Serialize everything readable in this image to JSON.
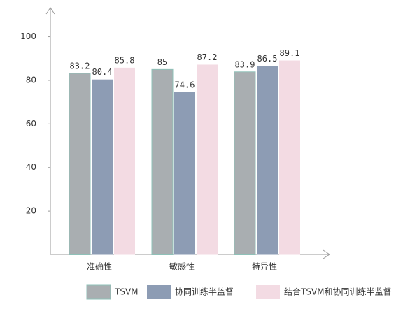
{
  "chart_data": {
    "type": "bar",
    "categories": [
      "准确性",
      "敏感性",
      "特异性"
    ],
    "series": [
      {
        "name": "TSVM",
        "color": "#a9aeb1",
        "values": [
          83.2,
          85,
          83.9
        ]
      },
      {
        "name": "协同训练半监督",
        "color": "#8d9cb4",
        "values": [
          80.4,
          74.6,
          86.5
        ]
      },
      {
        "name": "结合TSVM和协同训练半监督",
        "color": "#f3dbe3",
        "values": [
          85.8,
          87.2,
          89.1
        ]
      }
    ],
    "ylim": [
      0,
      113
    ],
    "yticks": [
      20,
      40,
      60,
      80,
      100
    ],
    "grid": false,
    "legend": "bottom"
  }
}
